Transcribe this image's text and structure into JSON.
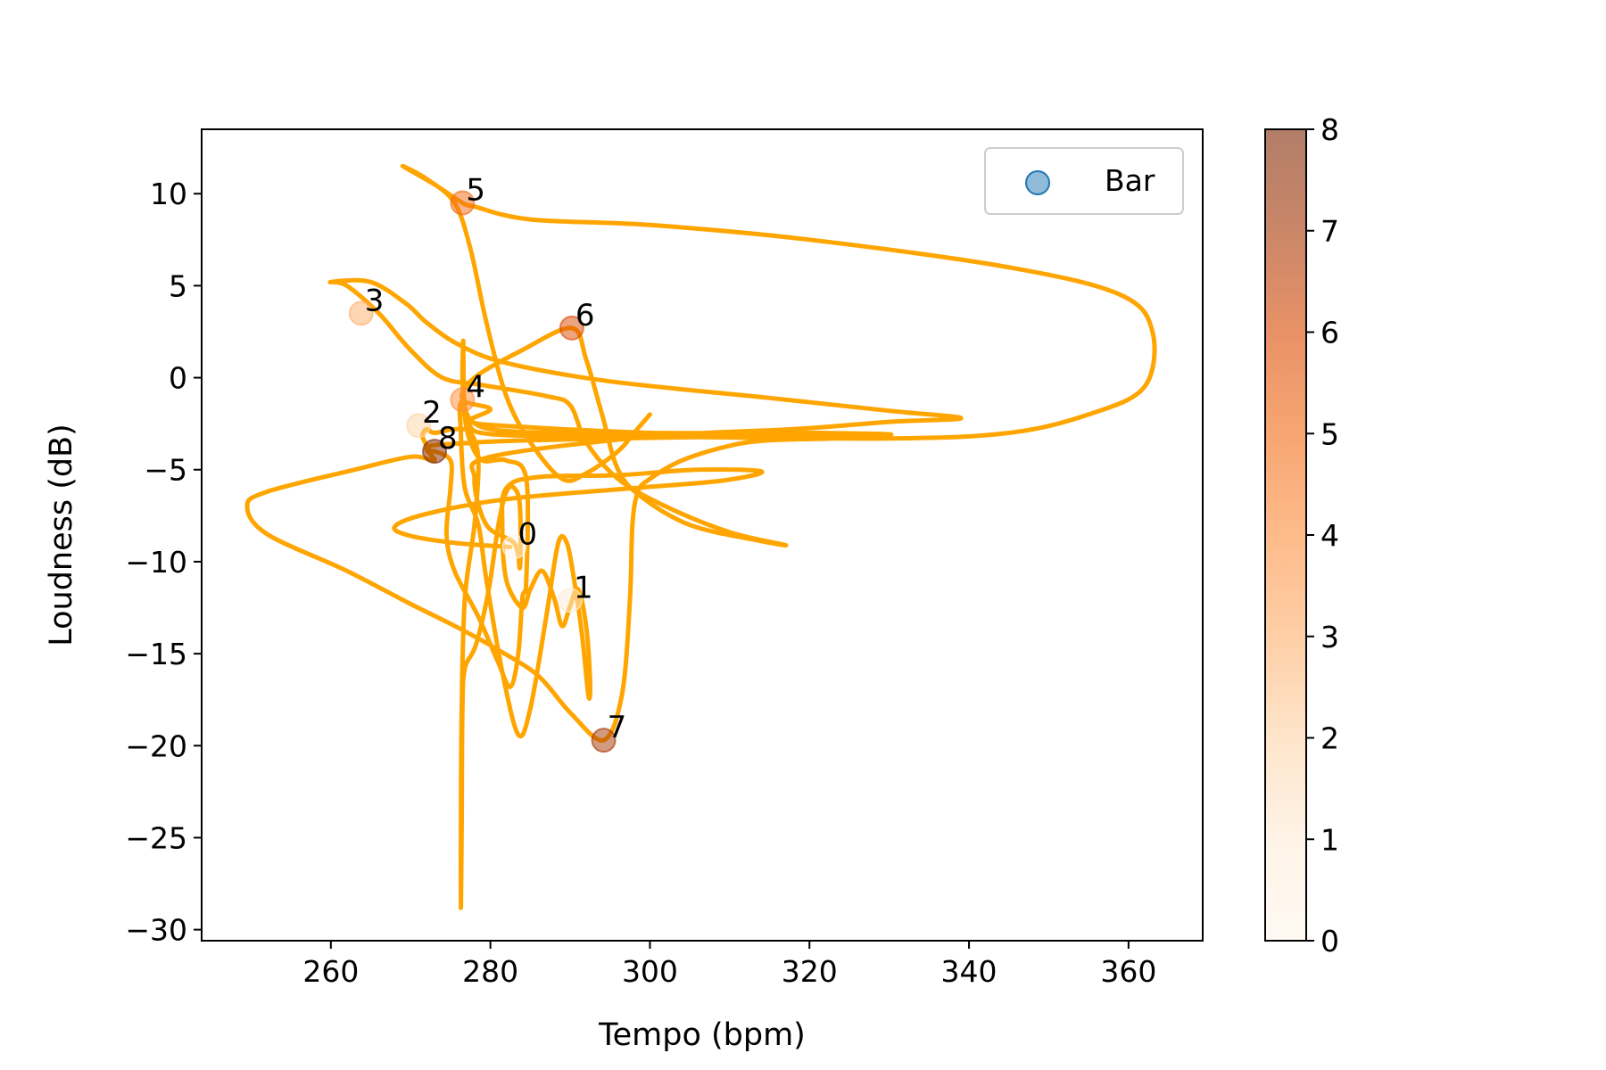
{
  "chart_data": {
    "type": "scatter",
    "title": "",
    "xlabel": "Tempo (bpm)",
    "ylabel": "Loudness (dB)",
    "xlim": [
      243.8,
      369.3
    ],
    "ylim": [
      -30.6,
      13.5
    ],
    "xticks": [
      260,
      280,
      300,
      320,
      340,
      360
    ],
    "yticks": [
      10,
      5,
      0,
      -5,
      -10,
      -15,
      -20,
      -25,
      -30
    ],
    "xtick_labels": [
      "260",
      "280",
      "300",
      "320",
      "340",
      "360"
    ],
    "ytick_labels": [
      "10",
      "5",
      "0",
      "−5",
      "−10",
      "−15",
      "−20",
      "−25",
      "−30"
    ],
    "grid": false,
    "legend": {
      "position": "upper-right",
      "entries": [
        {
          "label": "Bar",
          "color": "#1f77b4"
        }
      ]
    },
    "colorbar": {
      "cmap": "Oranges",
      "range": [
        0,
        8
      ],
      "ticks": [
        0,
        1,
        2,
        3,
        4,
        5,
        6,
        7,
        8
      ],
      "tick_labels": [
        "0",
        "1",
        "2",
        "3",
        "4",
        "5",
        "6",
        "7",
        "8"
      ]
    },
    "curve_color": "#ffa500",
    "points": [
      {
        "label": "0",
        "x": 283.0,
        "y": -9.2,
        "value": 0,
        "color": "#fff5eb"
      },
      {
        "label": "1",
        "x": 290.0,
        "y": -12.1,
        "value": 1,
        "color": "#feebd6"
      },
      {
        "label": "2",
        "x": 271.0,
        "y": -2.6,
        "value": 2,
        "color": "#fdd3a7"
      },
      {
        "label": "3",
        "x": 263.8,
        "y": 3.5,
        "value": 3,
        "color": "#fdae6a"
      },
      {
        "label": "4",
        "x": 276.5,
        "y": -1.2,
        "value": 4,
        "color": "#fd8d3c"
      },
      {
        "label": "5",
        "x": 276.5,
        "y": 9.5,
        "value": 5,
        "color": "#f16913"
      },
      {
        "label": "6",
        "x": 290.2,
        "y": 2.7,
        "value": 6,
        "color": "#d94801"
      },
      {
        "label": "7",
        "x": 294.2,
        "y": -19.7,
        "value": 7,
        "color": "#a63603"
      },
      {
        "label": "8",
        "x": 273.0,
        "y": -4.0,
        "value": 8,
        "color": "#7f2704"
      }
    ],
    "trajectory": [
      [
        282.5,
        -9.2
      ],
      [
        276,
        -9.0
      ],
      [
        270,
        -8.6
      ],
      [
        268,
        -8.1
      ],
      [
        272,
        -7.4
      ],
      [
        282,
        -6.6
      ],
      [
        298,
        -6.0
      ],
      [
        309,
        -5.6
      ],
      [
        314,
        -5.1
      ],
      [
        306,
        -5.0
      ],
      [
        296,
        -5.3
      ],
      [
        286,
        -5.4
      ],
      [
        282,
        -6.0
      ],
      [
        281.5,
        -8.0
      ],
      [
        282,
        -11.0
      ],
      [
        284,
        -12.5
      ],
      [
        285,
        -11.5
      ],
      [
        286.5,
        -10.5
      ],
      [
        288,
        -12.0
      ],
      [
        289,
        -13.5
      ],
      [
        290,
        -12.4
      ],
      [
        291,
        -11.5
      ],
      [
        292,
        -13.5
      ],
      [
        292.5,
        -16.5
      ],
      [
        292.3,
        -17.3
      ],
      [
        291.5,
        -14.0
      ],
      [
        290.5,
        -11.0
      ],
      [
        289.6,
        -9.0
      ],
      [
        288.5,
        -9.0
      ],
      [
        287,
        -13.0
      ],
      [
        285,
        -18.0
      ],
      [
        283.5,
        -19.4
      ],
      [
        281.5,
        -16.0
      ],
      [
        279.5,
        -11.0
      ],
      [
        278.5,
        -8.0
      ],
      [
        276.8,
        -6.0
      ],
      [
        276.3,
        -3.0
      ],
      [
        276.5,
        -1.3
      ],
      [
        280,
        -2.8
      ],
      [
        300,
        -3.0
      ],
      [
        320,
        -3.0
      ],
      [
        330,
        -3.1
      ],
      [
        310,
        -3.2
      ],
      [
        285,
        -3.4
      ],
      [
        275,
        -3.6
      ],
      [
        272,
        -3.8
      ],
      [
        273,
        -4.5
      ],
      [
        270,
        -4.3
      ],
      [
        263,
        -5.0
      ],
      [
        252,
        -6.2
      ],
      [
        249.5,
        -7.0
      ],
      [
        252,
        -8.5
      ],
      [
        262,
        -10.5
      ],
      [
        270,
        -12.3
      ],
      [
        276,
        -13.6
      ],
      [
        281,
        -14.8
      ],
      [
        286,
        -16.2
      ],
      [
        290,
        -18.2
      ],
      [
        294.2,
        -19.7
      ],
      [
        296.5,
        -17.2
      ],
      [
        297.5,
        -12.0
      ],
      [
        297.8,
        -8.0
      ],
      [
        298.5,
        -6.2
      ],
      [
        300,
        -5.5
      ],
      [
        304,
        -4.5
      ],
      [
        310,
        -3.7
      ],
      [
        315,
        -3.4
      ],
      [
        323,
        -3.3
      ],
      [
        318,
        -3.2
      ],
      [
        300,
        -3.0
      ],
      [
        285,
        -2.7
      ],
      [
        277.5,
        -2.4
      ],
      [
        280,
        -1.7
      ],
      [
        276.5,
        -1.2
      ],
      [
        278,
        0.0
      ],
      [
        284,
        1.5
      ],
      [
        290.2,
        2.7
      ],
      [
        292,
        1.0
      ],
      [
        294,
        -2.0
      ],
      [
        296,
        -5.0
      ],
      [
        299,
        -6.5
      ],
      [
        305,
        -8.0
      ],
      [
        313,
        -8.8
      ],
      [
        317,
        -9.1
      ],
      [
        310,
        -8.4
      ],
      [
        302,
        -7.0
      ],
      [
        296,
        -5.5
      ],
      [
        292,
        -3.5
      ],
      [
        290,
        -1.5
      ],
      [
        287,
        -1.0
      ],
      [
        279,
        -0.4
      ],
      [
        274,
        0.0
      ],
      [
        270,
        1.5
      ],
      [
        266,
        3.5
      ],
      [
        262,
        5.0
      ],
      [
        260,
        5.2
      ],
      [
        265,
        5.2
      ],
      [
        269.5,
        4.0
      ],
      [
        272,
        3.0
      ],
      [
        276,
        1.8
      ],
      [
        282,
        0.8
      ],
      [
        295,
        -0.2
      ],
      [
        315,
        -1.1
      ],
      [
        330,
        -1.8
      ],
      [
        339,
        -2.2
      ],
      [
        330,
        -2.4
      ],
      [
        318,
        -2.8
      ],
      [
        300,
        -3.2
      ],
      [
        280,
        -4.3
      ],
      [
        278,
        -5.5
      ],
      [
        279.5,
        -8.0
      ],
      [
        283,
        -9.0
      ],
      [
        283.7,
        -10.3
      ],
      [
        283.7,
        -7.0
      ],
      [
        283,
        -6.0
      ],
      [
        282,
        -6.2
      ],
      [
        281,
        -8.0
      ],
      [
        279.8,
        -11.5
      ],
      [
        278.2,
        -14.5
      ],
      [
        276.8,
        -15.8
      ],
      [
        276.5,
        -18.0
      ],
      [
        276.4,
        -24.0
      ],
      [
        276.3,
        -28.8
      ],
      [
        276.3,
        -25.0
      ],
      [
        276.4,
        -18.0
      ],
      [
        276.8,
        -12.0
      ],
      [
        278,
        -8.0
      ],
      [
        278.5,
        -4.5
      ],
      [
        277.5,
        -3.0
      ],
      [
        275.5,
        -2.8
      ],
      [
        273,
        -3.0
      ],
      [
        272,
        -2.8
      ],
      [
        271.5,
        -3.2
      ],
      [
        272.5,
        -4.0
      ],
      [
        273,
        -4.0
      ],
      [
        275,
        -4.5
      ],
      [
        275,
        -6.0
      ],
      [
        274.5,
        -8.5
      ],
      [
        275.5,
        -10.5
      ],
      [
        278.5,
        -13.0
      ],
      [
        281,
        -15.5
      ],
      [
        282.5,
        -16.8
      ],
      [
        283.5,
        -15.0
      ],
      [
        284,
        -12.0
      ],
      [
        284.5,
        -11.0
      ],
      [
        284.5,
        -5.5
      ],
      [
        282,
        -4.5
      ],
      [
        279,
        -4.5
      ],
      [
        277.5,
        -3.5
      ],
      [
        276.8,
        -2.2
      ],
      [
        276.6,
        -1.0
      ],
      [
        276.5,
        0.0
      ],
      [
        276.6,
        2.0
      ],
      [
        276.7,
        -1.0
      ],
      [
        277.2,
        -2.5
      ],
      [
        281,
        -3.1
      ],
      [
        300,
        -3.2
      ],
      [
        330,
        -3.3
      ],
      [
        345,
        -3.0
      ],
      [
        355,
        -2.0
      ],
      [
        362,
        -0.5
      ],
      [
        363,
        2.5
      ],
      [
        359,
        4.5
      ],
      [
        345,
        6.0
      ],
      [
        320,
        7.5
      ],
      [
        300,
        8.3
      ],
      [
        285,
        8.6
      ],
      [
        278,
        9.3
      ],
      [
        276.5,
        9.5
      ],
      [
        273,
        10.5
      ],
      [
        269,
        11.5
      ],
      [
        272,
        10.8
      ],
      [
        275.5,
        9.5
      ],
      [
        277.5,
        7.0
      ],
      [
        279.5,
        3.0
      ],
      [
        282,
        -1.0
      ],
      [
        285,
        -3.5
      ],
      [
        289,
        -5.5
      ],
      [
        292,
        -5.2
      ],
      [
        296,
        -4.0
      ],
      [
        298,
        -3.0
      ],
      [
        300,
        -2.0
      ]
    ]
  }
}
